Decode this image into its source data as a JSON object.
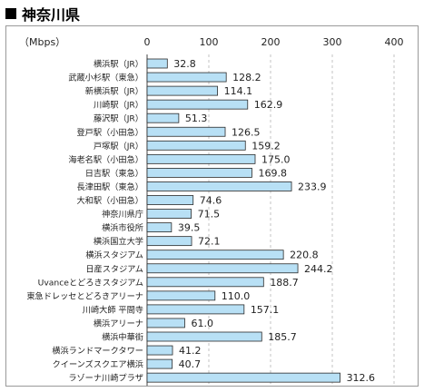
{
  "heading": {
    "text": "神奈川県"
  },
  "chart_data": {
    "type": "bar",
    "orientation": "horizontal",
    "unit_label": "（Mbps）",
    "xlim": [
      0,
      400
    ],
    "ticks": [
      0,
      100,
      200,
      300,
      400
    ],
    "grid": true,
    "bar_color": "#b8e0f5",
    "bar_stroke": "#2a2a2a",
    "categories": [
      "横浜駅（JR）",
      "武蔵小杉駅（東急）",
      "新横浜駅（JR）",
      "川崎駅（JR）",
      "藤沢駅（JR）",
      "登戸駅（小田急）",
      "戸塚駅（JR）",
      "海老名駅（小田急）",
      "日吉駅（東急）",
      "長津田駅（東急）",
      "大和駅（小田急）",
      "神奈川県庁",
      "横浜市役所",
      "横浜国立大学",
      "横浜スタジアム",
      "日産スタジアム",
      "Uvanceとどろきスタジアム",
      "東急ドレッセとどろきアリーナ",
      "川崎大師 平間寺",
      "横浜アリーナ",
      "横浜中華街",
      "横浜ランドマークタワー",
      "クイーンズスクエア横浜",
      "ラゾーナ川崎プラザ"
    ],
    "values": [
      32.8,
      128.2,
      114.1,
      162.9,
      51.3,
      126.5,
      159.2,
      175.0,
      169.8,
      233.9,
      74.6,
      71.5,
      39.5,
      72.1,
      220.8,
      244.2,
      188.7,
      110.0,
      157.1,
      61.0,
      185.7,
      41.2,
      40.7,
      312.6
    ],
    "data_labels": [
      "32.8",
      "128.2",
      "114.1",
      "162.9",
      "51.3",
      "126.5",
      "159.2",
      "175.0",
      "169.8",
      "233.9",
      "74.6",
      "71.5",
      "39.5",
      "72.1",
      "220.8",
      "244.2",
      "188.7",
      "110.0",
      "157.1",
      "61.0",
      "185.7",
      "41.2",
      "40.7",
      "312.6"
    ]
  }
}
